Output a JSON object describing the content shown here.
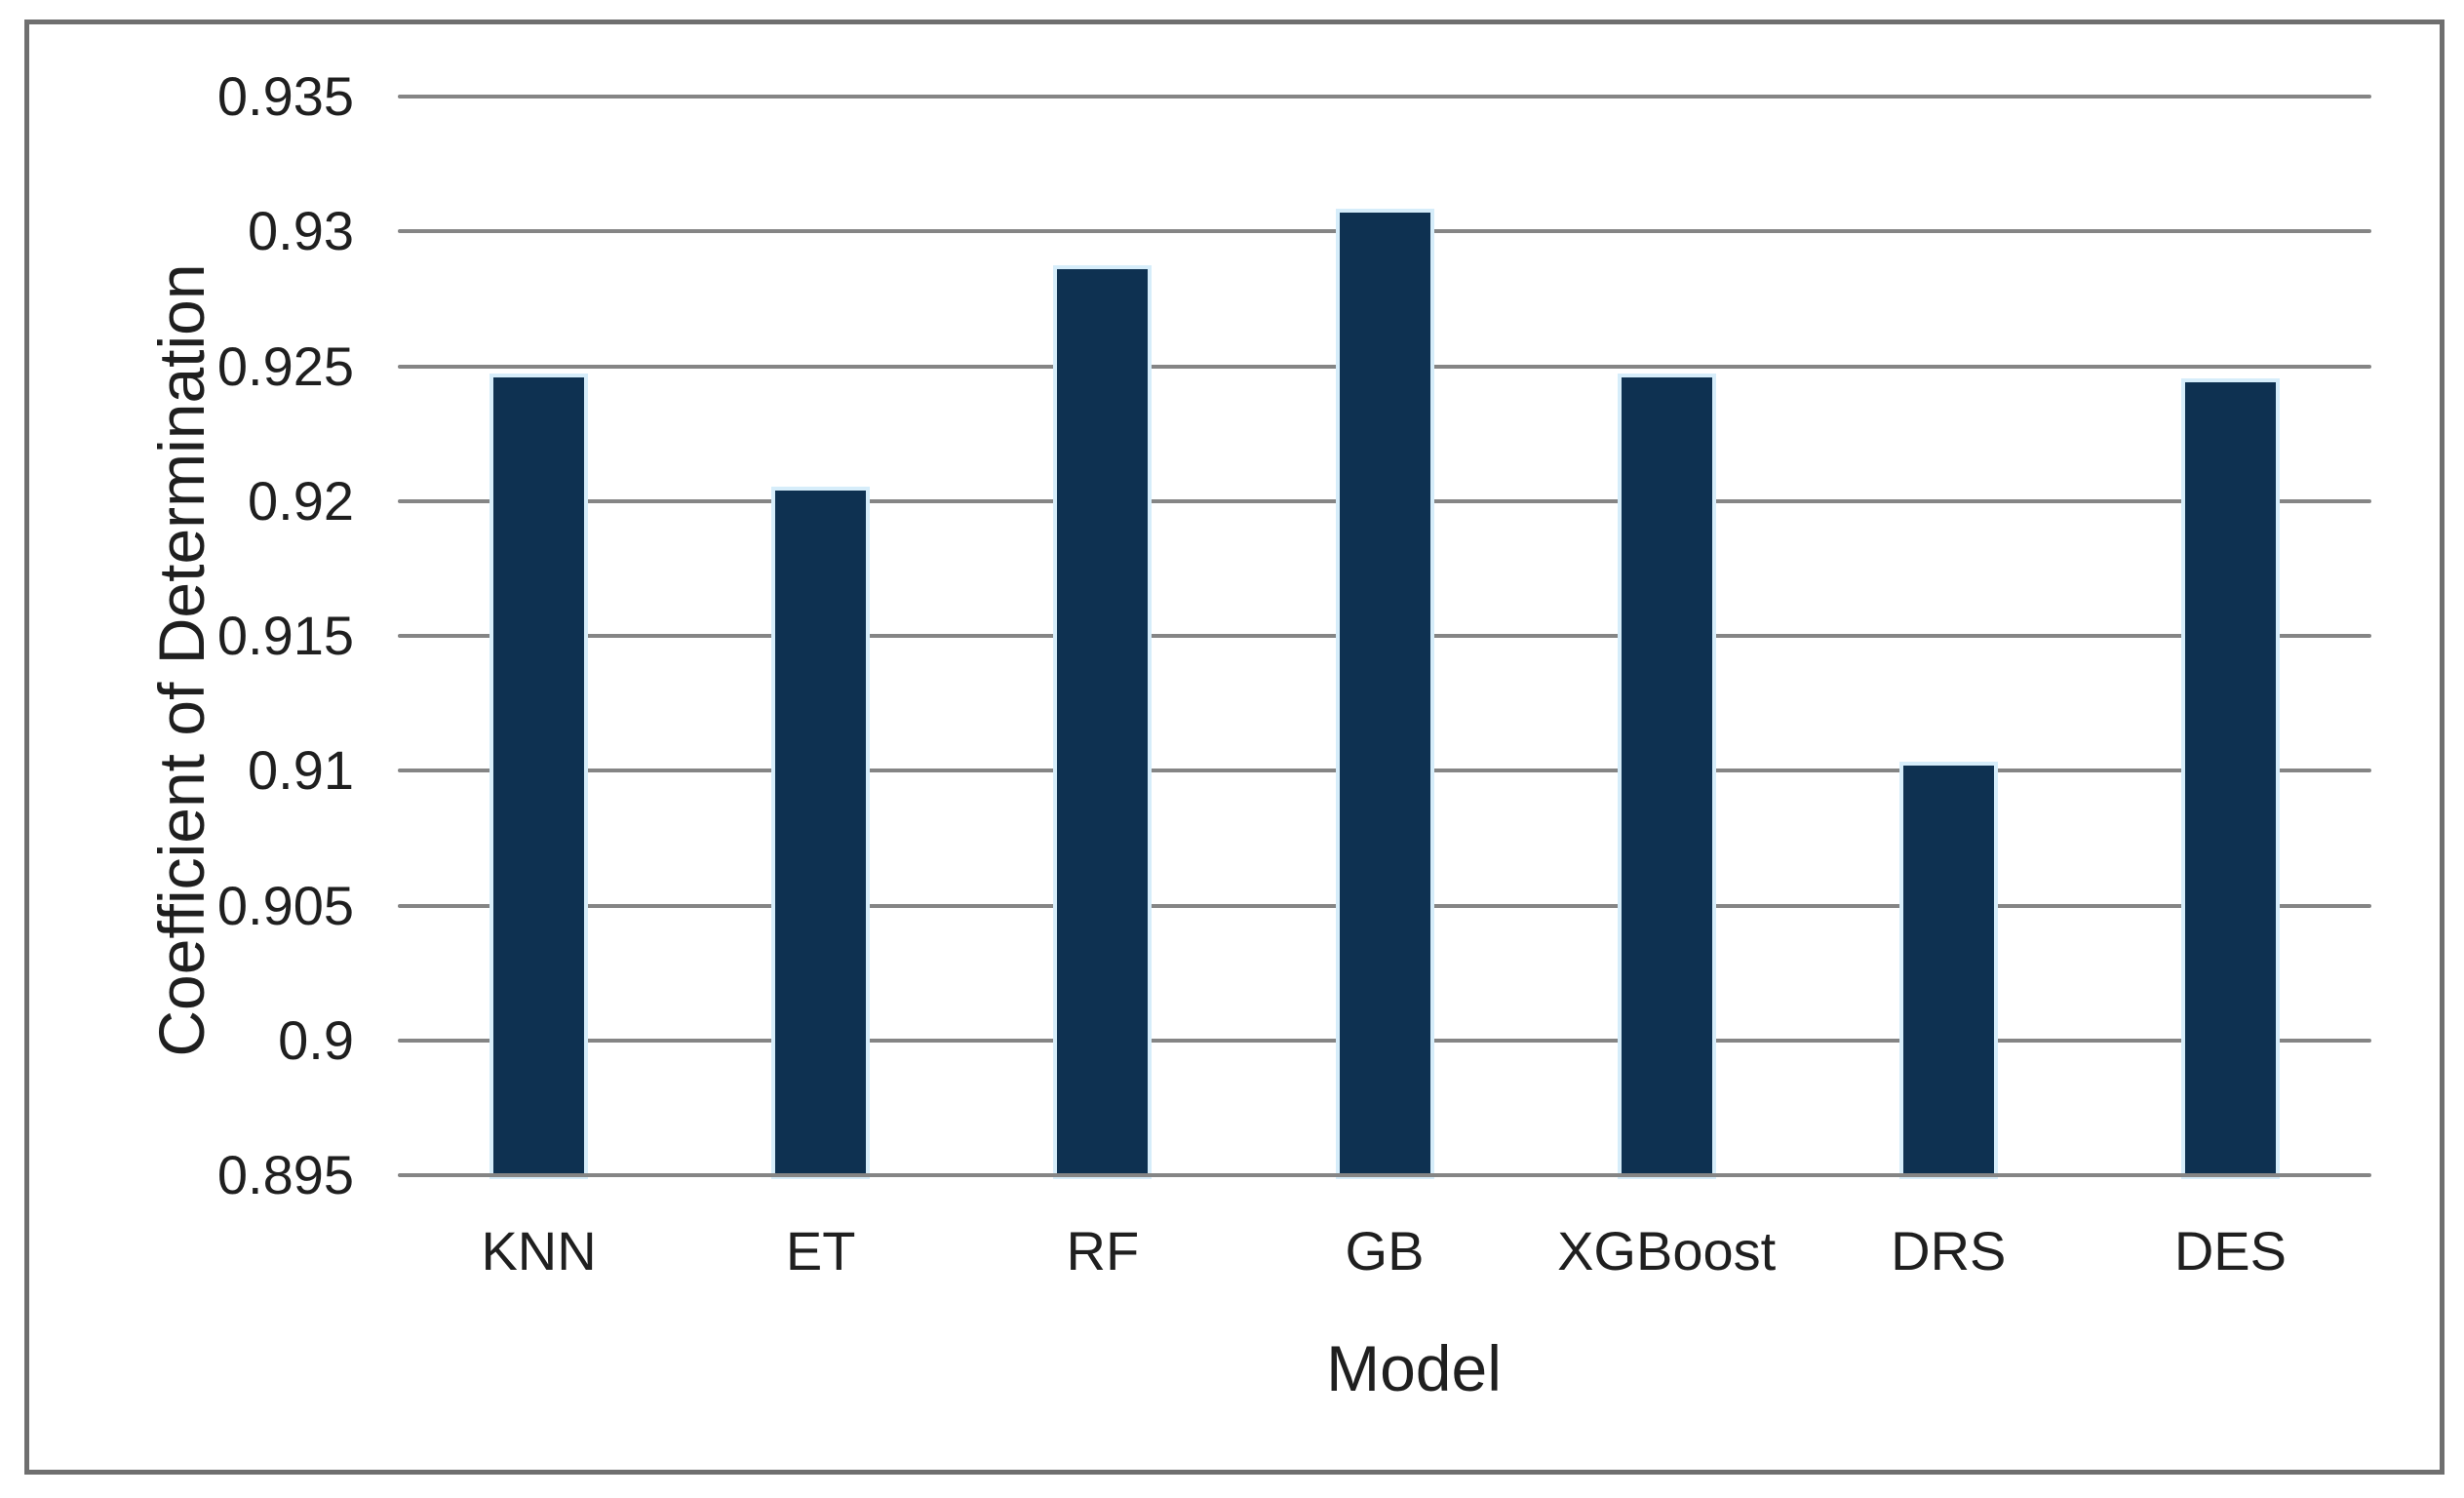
{
  "figure": {
    "background": "#ffffff",
    "border_color": "#6f6f6f"
  },
  "chart_data": {
    "type": "bar",
    "title": "",
    "xlabel": "Model",
    "ylabel": "Coefficient of Determination",
    "categories": [
      "KNN",
      "ET",
      "RF",
      "GB",
      "XGBoost",
      "DRS",
      "DES"
    ],
    "values": [
      0.9246,
      0.9204,
      0.9286,
      0.9307,
      0.9246,
      0.9102,
      0.9244
    ],
    "ylim": [
      0.895,
      0.935
    ],
    "ytick_step": 0.005,
    "ytick_labels": [
      "0.895",
      "0.9",
      "0.905",
      "0.91",
      "0.915",
      "0.92",
      "0.925",
      "0.93",
      "0.935"
    ],
    "grid": true,
    "legend_position": "none",
    "bar_color": "#0e3151",
    "bar_halo_color": "#d6edfa",
    "gridline_color": "#858585",
    "text_color": "#1f1f1f"
  }
}
